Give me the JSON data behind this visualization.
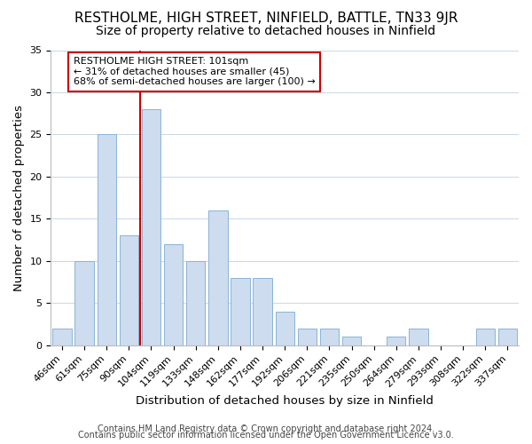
{
  "title": "RESTHOLME, HIGH STREET, NINFIELD, BATTLE, TN33 9JR",
  "subtitle": "Size of property relative to detached houses in Ninfield",
  "xlabel": "Distribution of detached houses by size in Ninfield",
  "ylabel": "Number of detached properties",
  "bar_labels": [
    "46sqm",
    "61sqm",
    "75sqm",
    "90sqm",
    "104sqm",
    "119sqm",
    "133sqm",
    "148sqm",
    "162sqm",
    "177sqm",
    "192sqm",
    "206sqm",
    "221sqm",
    "235sqm",
    "250sqm",
    "264sqm",
    "279sqm",
    "293sqm",
    "308sqm",
    "322sqm",
    "337sqm"
  ],
  "bar_values": [
    2,
    10,
    25,
    13,
    28,
    12,
    10,
    16,
    8,
    8,
    4,
    2,
    2,
    1,
    0,
    1,
    2,
    0,
    0,
    2,
    2
  ],
  "bar_color": "#cddcee",
  "bar_edge_color": "#8ab4d8",
  "vline_index": 4,
  "vline_color": "#cc0000",
  "annotation_title": "RESTHOLME HIGH STREET: 101sqm",
  "annotation_line1": "← 31% of detached houses are smaller (45)",
  "annotation_line2": "68% of semi-detached houses are larger (100) →",
  "annotation_box_facecolor": "#ffffff",
  "annotation_box_edgecolor": "#cc0000",
  "ylim": [
    0,
    35
  ],
  "yticks": [
    0,
    5,
    10,
    15,
    20,
    25,
    30,
    35
  ],
  "footer1": "Contains HM Land Registry data © Crown copyright and database right 2024.",
  "footer2": "Contains public sector information licensed under the Open Government Licence v3.0.",
  "title_fontsize": 11,
  "subtitle_fontsize": 10,
  "axis_label_fontsize": 9.5,
  "tick_fontsize": 8,
  "annotation_fontsize": 8,
  "footer_fontsize": 7
}
